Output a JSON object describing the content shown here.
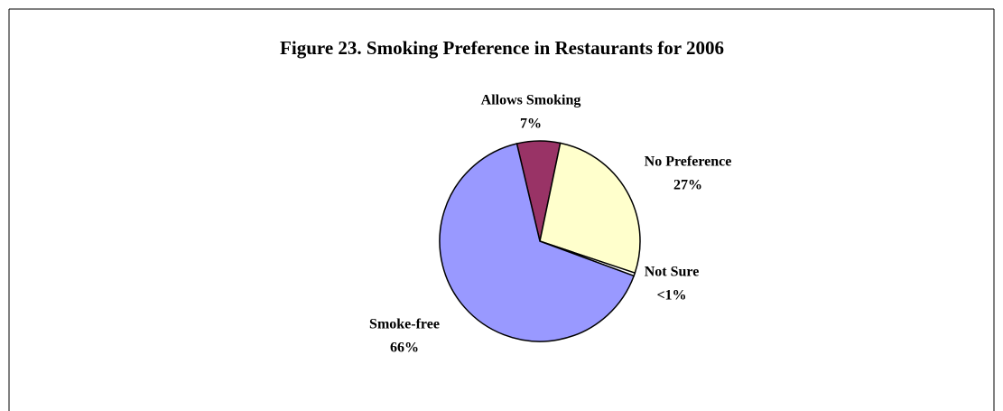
{
  "chart_data": {
    "type": "pie",
    "title": "Figure 23. Smoking Preference in Restaurants for 2006",
    "categories": [
      "Allows Smoking",
      "No Preference",
      "Not Sure",
      "Smoke-free"
    ],
    "values": [
      7,
      27,
      0.5,
      66
    ],
    "value_labels": [
      "7%",
      "27%",
      "<1%",
      "66%"
    ],
    "colors": [
      "#993366",
      "#ffffcc",
      "#ffffff",
      "#9999ff"
    ]
  }
}
